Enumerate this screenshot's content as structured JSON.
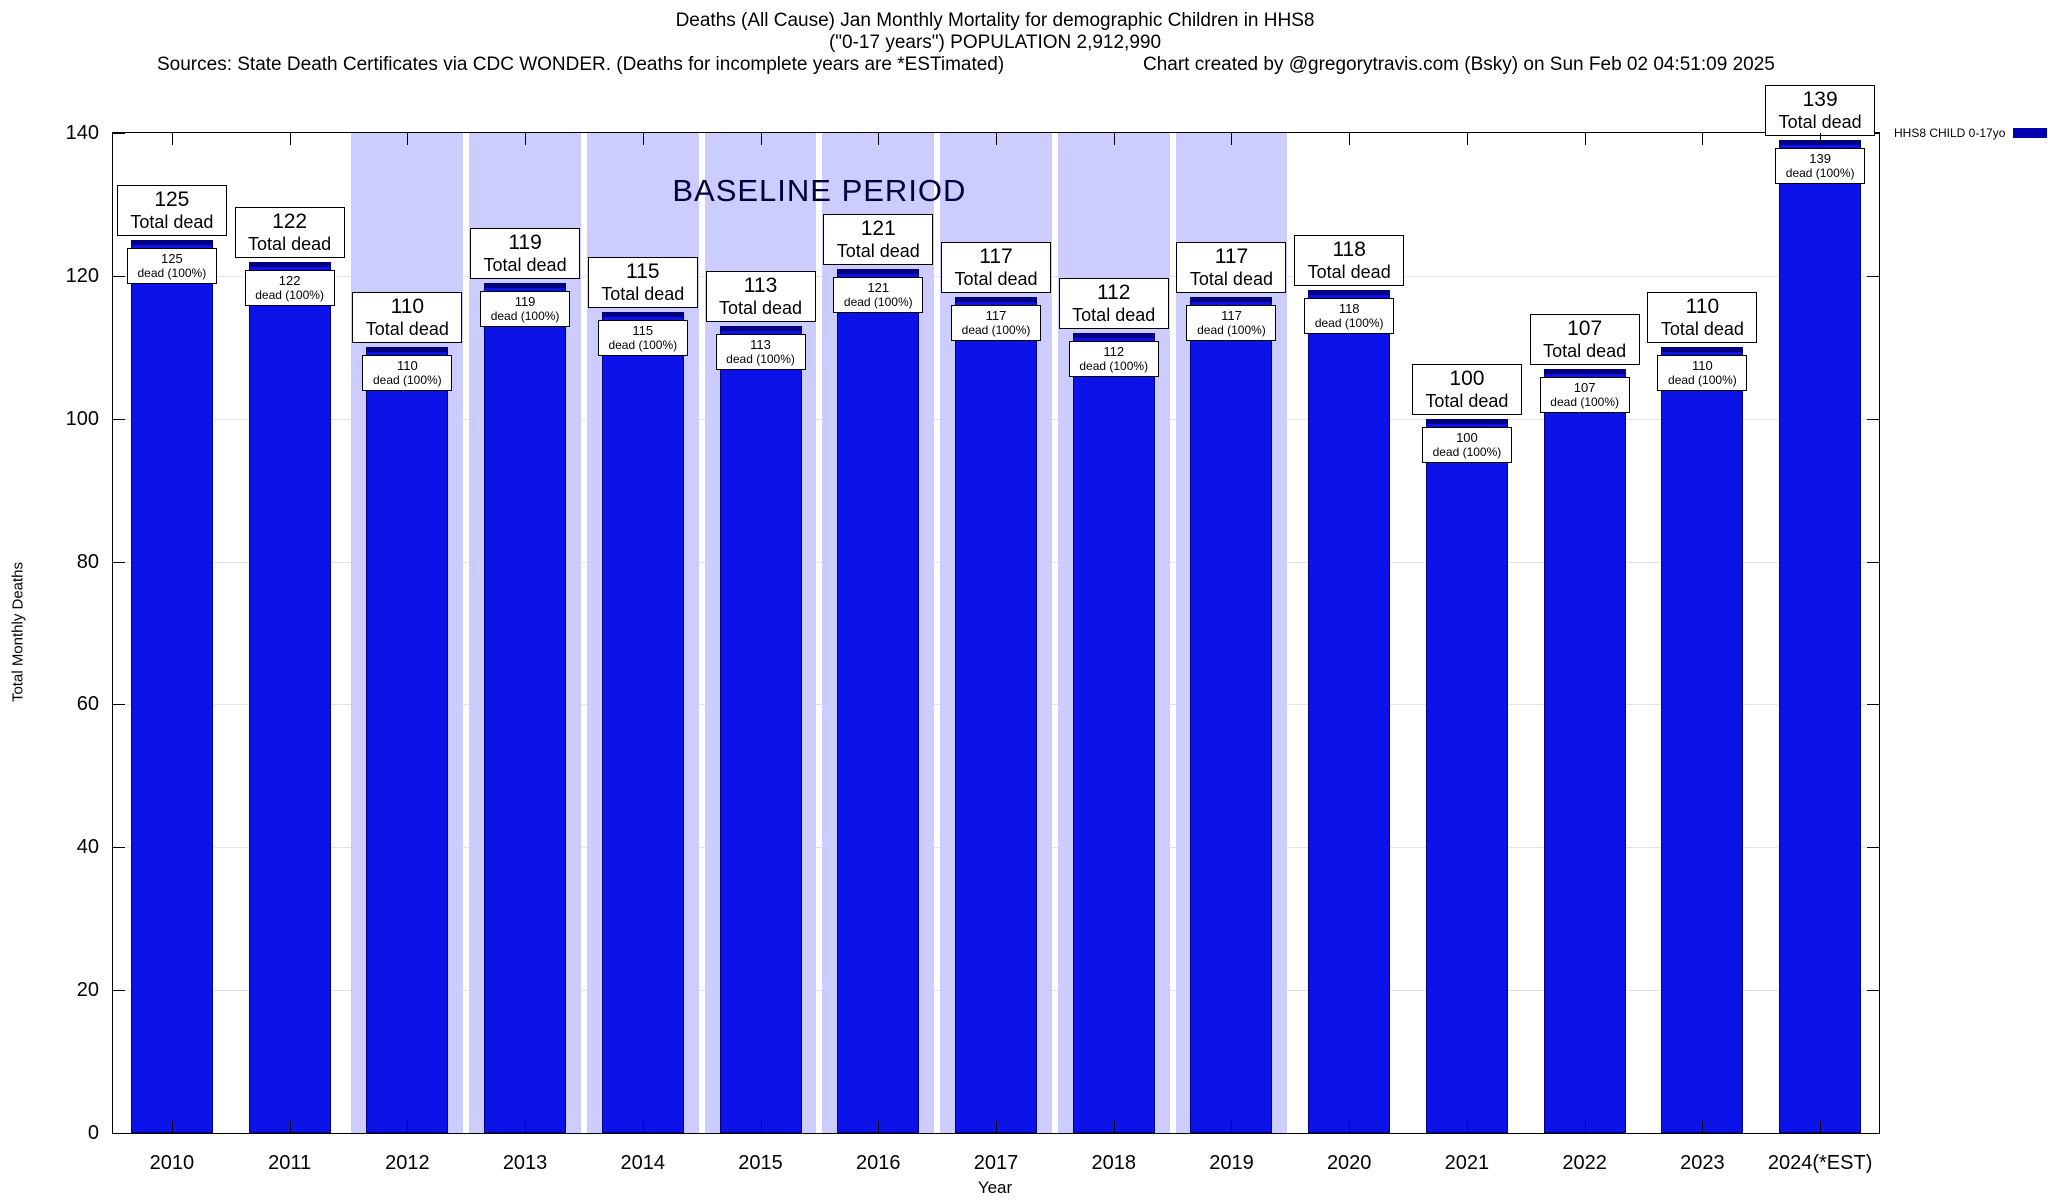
{
  "header": {
    "title_line1": "Deaths (All Cause) Jan Monthly Mortality for demographic Children in HHS8",
    "title_line2": "(\"0-17 years\") POPULATION 2,912,990",
    "sources": "Sources: State Death Certificates via CDC WONDER. (Deaths for incomplete years are *ESTimated)",
    "credit": "Chart created by @gregorytravis.com (Bsky) on Sun Feb 02 04:51:09 2025"
  },
  "chart_data": {
    "type": "bar",
    "title": "Deaths (All Cause) Jan Monthly Mortality for demographic Children in HHS8",
    "subtitle": "(\"0-17 years\") POPULATION 2,912,990",
    "xlabel": "Year",
    "ylabel": "Total Monthly Deaths",
    "ylim": [
      0,
      140
    ],
    "yticks": [
      0,
      20,
      40,
      60,
      80,
      100,
      120,
      140
    ],
    "grid": "horizontal",
    "legend_position": "top-right",
    "categories": [
      "2010",
      "2011",
      "2012",
      "2013",
      "2014",
      "2015",
      "2016",
      "2017",
      "2018",
      "2019",
      "2020",
      "2021",
      "2022",
      "2023",
      "2024(*EST)"
    ],
    "values": [
      125,
      122,
      110,
      119,
      115,
      113,
      121,
      117,
      112,
      117,
      118,
      100,
      107,
      110,
      139
    ],
    "bar_top_caption": "Total dead",
    "bar_inner_caption": "dead (100%)",
    "bar_color": "#0c13e8",
    "bar_border_color": "#000080",
    "baseline": {
      "label": "BASELINE PERIOD",
      "start_category": "2012",
      "end_category": "2019",
      "color": "#ccccff"
    },
    "legend": {
      "label": "HHS8 CHILD 0-17yo",
      "color": "#0000b0"
    }
  }
}
